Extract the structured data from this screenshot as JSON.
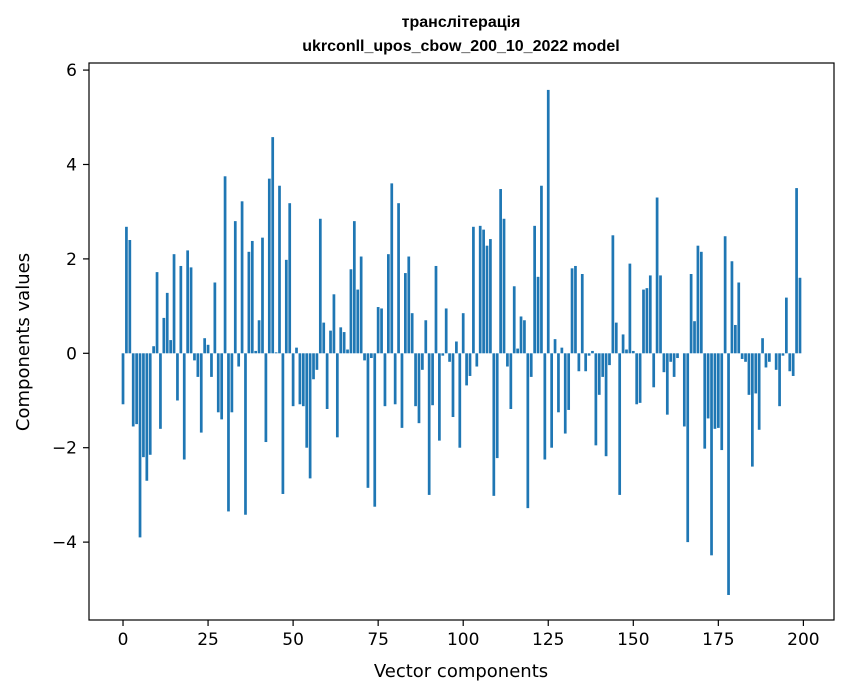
{
  "chart_data": {
    "type": "bar",
    "title": "транслітерація",
    "subtitle": "ukrconll_upos_cbow_200_10_2022 model",
    "xlabel": "Vector components",
    "ylabel": "Components values",
    "xlim": [
      -10,
      209
    ],
    "ylim": [
      -5.65,
      6.15
    ],
    "xticks": [
      0,
      25,
      50,
      75,
      100,
      125,
      150,
      175,
      200
    ],
    "yticks": [
      -4,
      -2,
      0,
      2,
      4,
      6
    ],
    "xtick_labels": [
      "0",
      "25",
      "50",
      "75",
      "100",
      "125",
      "150",
      "175",
      "200"
    ],
    "ytick_labels": [
      "−4",
      "−2",
      "0",
      "2",
      "4",
      "6"
    ],
    "grid": false,
    "bar_color": "#1f77b4",
    "values": [
      -1.08,
      2.68,
      2.4,
      -1.55,
      -1.5,
      -3.9,
      -2.2,
      -2.7,
      -2.15,
      0.15,
      1.72,
      -1.6,
      0.75,
      1.28,
      0.28,
      2.1,
      -1.0,
      1.85,
      -2.25,
      2.18,
      1.82,
      -0.15,
      -0.5,
      -1.68,
      0.32,
      0.18,
      -0.5,
      1.5,
      -1.25,
      -1.4,
      3.75,
      -3.35,
      -1.25,
      2.8,
      -0.28,
      3.22,
      -3.42,
      2.15,
      2.38,
      0.05,
      0.7,
      2.45,
      -1.88,
      3.7,
      4.58,
      0.02,
      3.55,
      -2.98,
      1.98,
      3.18,
      -1.12,
      0.12,
      -1.08,
      -1.12,
      -2.0,
      -2.65,
      -0.55,
      -0.35,
      2.85,
      0.65,
      -1.18,
      0.48,
      1.25,
      -1.78,
      0.55,
      0.45,
      0.08,
      1.78,
      2.8,
      1.35,
      2.05,
      -0.15,
      -2.85,
      -0.1,
      -3.25,
      0.98,
      0.95,
      -1.12,
      2.1,
      3.6,
      -1.08,
      3.18,
      -1.58,
      1.7,
      2.05,
      0.85,
      -1.12,
      -1.48,
      -0.35,
      0.7,
      -3.0,
      -1.1,
      1.85,
      -1.85,
      -0.05,
      0.95,
      -0.18,
      -1.35,
      0.25,
      -2.0,
      0.85,
      -0.68,
      -0.48,
      2.68,
      -0.28,
      2.7,
      2.62,
      2.28,
      2.42,
      -3.02,
      -2.22,
      3.48,
      2.85,
      -0.28,
      -1.18,
      1.42,
      0.1,
      0.78,
      0.7,
      -3.28,
      -0.5,
      2.7,
      1.62,
      3.55,
      -2.25,
      5.58,
      -2.0,
      0.3,
      -1.25,
      0.12,
      -1.7,
      -1.2,
      1.8,
      1.85,
      -0.38,
      1.68,
      -0.38,
      -0.05,
      0.05,
      -1.95,
      -0.88,
      -0.5,
      -2.18,
      -0.25,
      2.5,
      0.65,
      -3.0,
      0.4,
      0.08,
      1.9,
      0.05,
      -1.08,
      -1.05,
      1.35,
      1.38,
      1.65,
      -0.72,
      3.3,
      1.65,
      -0.4,
      -1.3,
      -0.18,
      -0.5,
      -0.1,
      0.0,
      -1.55,
      -4.0,
      1.68,
      0.68,
      2.28,
      2.15,
      -2.02,
      -1.38,
      -4.28,
      -1.6,
      -1.58,
      -2.05,
      2.48,
      -5.12,
      1.95,
      0.6,
      1.5,
      -0.12,
      -0.18,
      -0.88,
      -2.4,
      -0.85,
      -1.62,
      0.32,
      -0.3,
      -0.18,
      0.0,
      -0.35,
      -1.12,
      -0.05,
      1.18,
      -0.38,
      -0.48,
      3.5,
      1.6
    ]
  }
}
